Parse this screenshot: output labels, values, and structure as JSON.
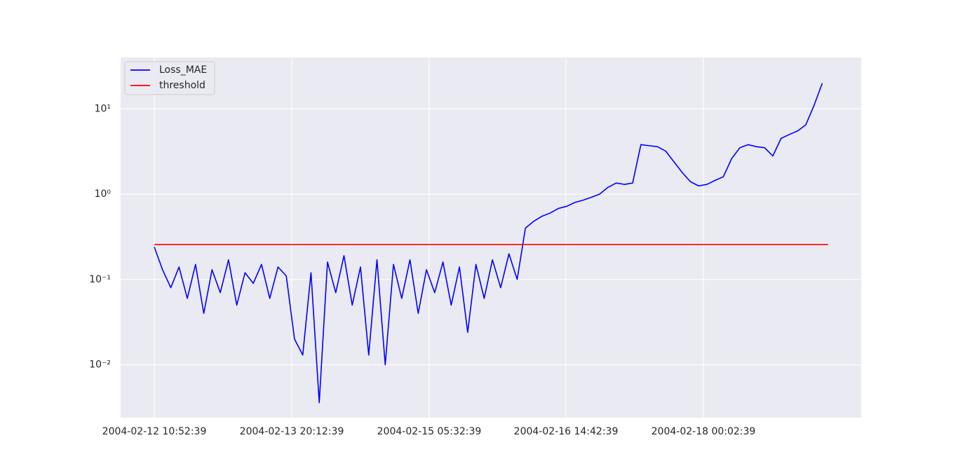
{
  "chart_data": {
    "type": "line",
    "series": [
      {
        "name": "Loss_MAE",
        "color": "#0000ff",
        "x": [
          "2004-02-12 10:52:39",
          "2004-02-12 12:52:39",
          "2004-02-12 14:52:39",
          "2004-02-12 16:52:39",
          "2004-02-12 18:52:39",
          "2004-02-12 20:52:39",
          "2004-02-12 22:52:39",
          "2004-02-13 00:52:39",
          "2004-02-13 02:52:39",
          "2004-02-13 04:52:39",
          "2004-02-13 06:52:39",
          "2004-02-13 08:52:39",
          "2004-02-13 10:52:39",
          "2004-02-13 12:52:39",
          "2004-02-13 14:52:39",
          "2004-02-13 16:52:39",
          "2004-02-13 18:52:39",
          "2004-02-13 20:52:39",
          "2004-02-13 22:52:39",
          "2004-02-14 00:52:39",
          "2004-02-14 02:52:39",
          "2004-02-14 04:52:39",
          "2004-02-14 06:52:39",
          "2004-02-14 08:52:39",
          "2004-02-14 10:52:39",
          "2004-02-14 12:52:39",
          "2004-02-14 14:52:39",
          "2004-02-14 16:52:39",
          "2004-02-14 18:52:39",
          "2004-02-14 20:52:39",
          "2004-02-14 22:52:39",
          "2004-02-15 00:52:39",
          "2004-02-15 02:52:39",
          "2004-02-15 04:52:39",
          "2004-02-15 06:52:39",
          "2004-02-15 08:52:39",
          "2004-02-15 10:52:39",
          "2004-02-15 12:52:39",
          "2004-02-15 14:52:39",
          "2004-02-15 16:52:39",
          "2004-02-15 18:52:39",
          "2004-02-15 20:52:39",
          "2004-02-15 22:52:39",
          "2004-02-16 00:52:39",
          "2004-02-16 02:52:39",
          "2004-02-16 04:52:39",
          "2004-02-16 06:52:39",
          "2004-02-16 08:52:39",
          "2004-02-16 10:52:39",
          "2004-02-16 12:52:39",
          "2004-02-16 14:52:39",
          "2004-02-16 16:52:39",
          "2004-02-16 18:52:39",
          "2004-02-16 20:52:39",
          "2004-02-16 22:52:39",
          "2004-02-17 00:52:39",
          "2004-02-17 02:52:39",
          "2004-02-17 04:52:39",
          "2004-02-17 06:52:39",
          "2004-02-17 08:52:39",
          "2004-02-17 10:52:39",
          "2004-02-17 12:52:39",
          "2004-02-17 14:52:39",
          "2004-02-17 16:52:39",
          "2004-02-17 18:52:39",
          "2004-02-17 20:52:39",
          "2004-02-17 22:52:39",
          "2004-02-18 00:52:39",
          "2004-02-18 02:52:39",
          "2004-02-18 04:52:39",
          "2004-02-18 06:52:39",
          "2004-02-18 08:52:39",
          "2004-02-18 10:52:39",
          "2004-02-18 12:52:39",
          "2004-02-18 14:52:39",
          "2004-02-18 16:52:39",
          "2004-02-18 18:52:39",
          "2004-02-18 20:52:39",
          "2004-02-18 22:52:39",
          "2004-02-19 00:52:39",
          "2004-02-19 02:52:39",
          "2004-02-19 04:52:39"
        ],
        "values": [
          0.24,
          0.13,
          0.08,
          0.14,
          0.06,
          0.15,
          0.04,
          0.13,
          0.07,
          0.17,
          0.05,
          0.12,
          0.09,
          0.15,
          0.06,
          0.14,
          0.11,
          0.02,
          0.013,
          0.12,
          0.0036,
          0.16,
          0.07,
          0.19,
          0.05,
          0.14,
          0.013,
          0.17,
          0.01,
          0.15,
          0.06,
          0.17,
          0.04,
          0.13,
          0.07,
          0.16,
          0.05,
          0.14,
          0.024,
          0.15,
          0.06,
          0.17,
          0.08,
          0.2,
          0.1,
          0.4,
          0.48,
          0.55,
          0.6,
          0.68,
          0.72,
          0.8,
          0.85,
          0.92,
          1.0,
          1.2,
          1.35,
          1.3,
          1.35,
          3.8,
          3.7,
          3.6,
          3.2,
          2.4,
          1.8,
          1.4,
          1.25,
          1.3,
          1.45,
          1.6,
          2.6,
          3.5,
          3.8,
          3.6,
          3.5,
          2.8,
          4.5,
          5.0,
          5.5,
          6.5,
          11,
          20
        ]
      },
      {
        "name": "threshold",
        "color": "#ff0000",
        "x": [
          "2004-02-12 10:52:39",
          "2004-02-19 06:16:39"
        ],
        "values": [
          0.257,
          0.257
        ]
      }
    ],
    "xlim": [
      "2004-02-12 02:42:39",
      "2004-02-19 14:18:39"
    ],
    "xticks": [
      "2004-02-12 10:52:39",
      "2004-02-13 20:12:39",
      "2004-02-15 05:32:39",
      "2004-02-16 14:42:39",
      "2004-02-18 00:02:39"
    ],
    "ylim": [
      0.0024,
      40
    ],
    "log_y": true,
    "yticks": [
      {
        "value": 0.01,
        "label": "10⁻²"
      },
      {
        "value": 0.1,
        "label": "10⁻¹"
      },
      {
        "value": 1,
        "label": "10⁰"
      },
      {
        "value": 10,
        "label": "10¹"
      }
    ],
    "grid": true,
    "legend": "upper left"
  }
}
